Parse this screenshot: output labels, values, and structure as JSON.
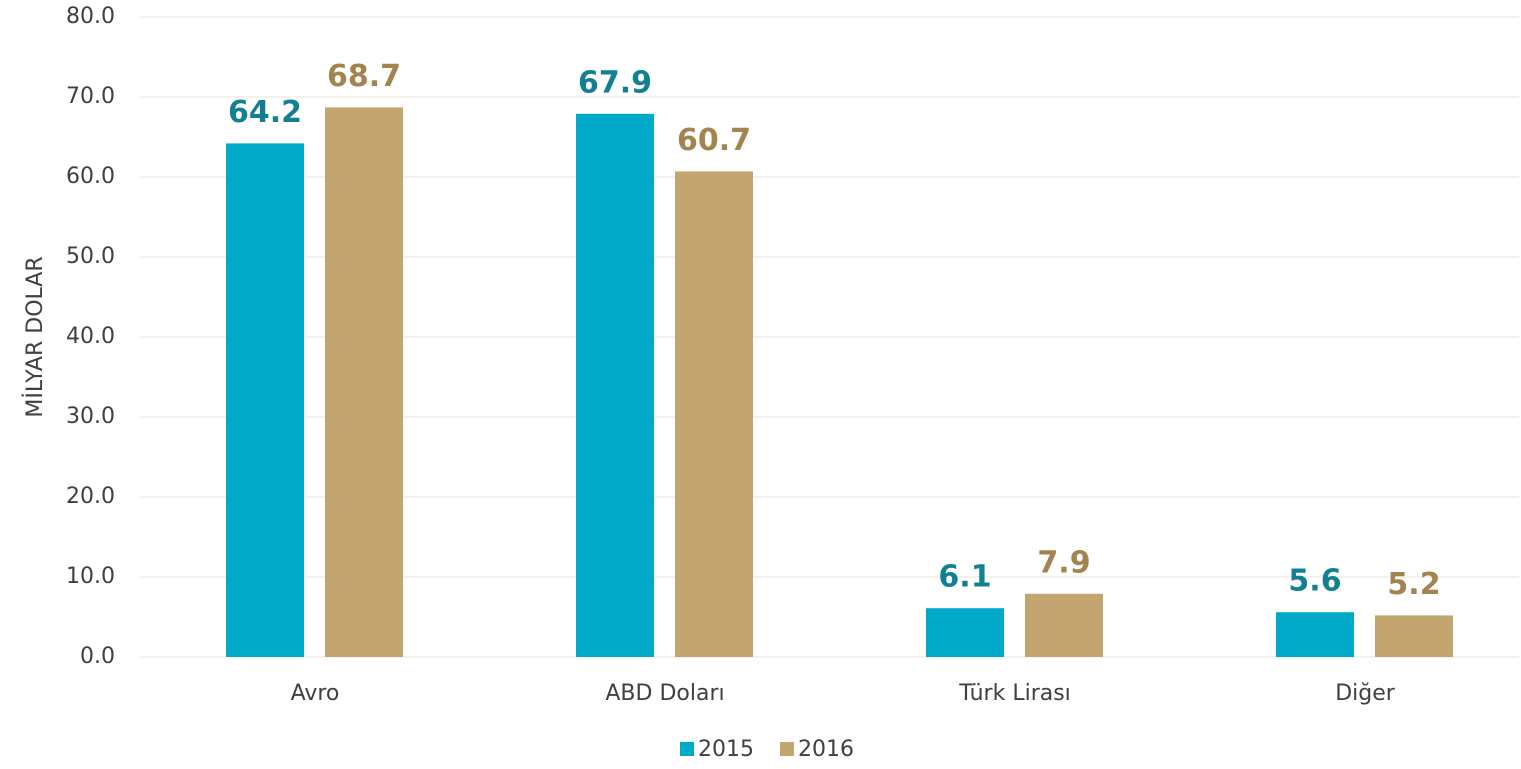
{
  "chart_data": {
    "type": "bar",
    "y_axis_label": "MİLYAR DOLAR",
    "categories": [
      "Avro",
      "ABD Doları",
      "Türk Lirası",
      "Diğer"
    ],
    "series": [
      {
        "name": "2015",
        "color": "#00a9c8",
        "values": [
          64.2,
          67.9,
          6.1,
          5.6
        ]
      },
      {
        "name": "2016",
        "color": "#c4a56f",
        "values": [
          68.7,
          60.7,
          7.9,
          5.2
        ]
      }
    ],
    "ylim": [
      0,
      80
    ],
    "yticks": [
      {
        "value": 0,
        "label": "0.0"
      },
      {
        "value": 10,
        "label": "10.0"
      },
      {
        "value": 20,
        "label": "20.0"
      },
      {
        "value": 30,
        "label": "30.0"
      },
      {
        "value": 40,
        "label": "40.0"
      },
      {
        "value": 50,
        "label": "50.0"
      },
      {
        "value": 60,
        "label": "60.0"
      },
      {
        "value": 70,
        "label": "70.0"
      },
      {
        "value": 80,
        "label": "80.0"
      }
    ],
    "grid": true,
    "legend": "bottom"
  }
}
